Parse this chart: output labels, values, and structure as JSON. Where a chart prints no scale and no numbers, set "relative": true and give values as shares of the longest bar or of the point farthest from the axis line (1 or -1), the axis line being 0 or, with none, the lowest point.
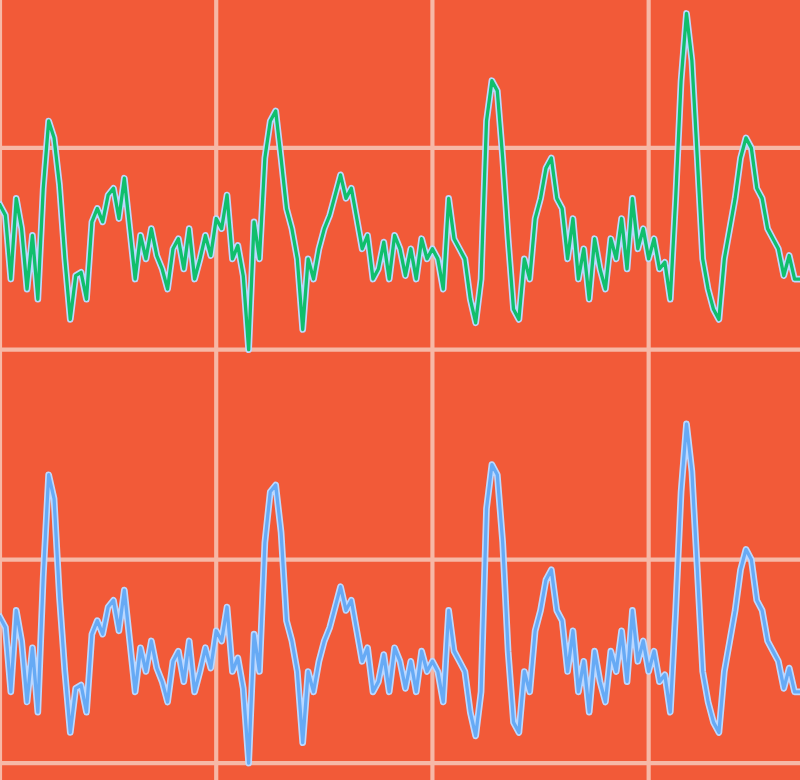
{
  "chart_data": [
    {
      "type": "line",
      "relative": true,
      "grid": true,
      "tick_labels": false,
      "categories": [
        null,
        null,
        null,
        null,
        null,
        null,
        null,
        null,
        null,
        null,
        null,
        null,
        null,
        null,
        null,
        null,
        null,
        null,
        null,
        null,
        null,
        null,
        null,
        null,
        null,
        null,
        null,
        null,
        null,
        null,
        null,
        null,
        null,
        null,
        null,
        null,
        null,
        null,
        null,
        null,
        null,
        null,
        null,
        null,
        null,
        null,
        null,
        null,
        null,
        null,
        null,
        null,
        null,
        null,
        null,
        null,
        null,
        null,
        null,
        null,
        null,
        null,
        null,
        null,
        null,
        null,
        null,
        null,
        null,
        null,
        null,
        null,
        null,
        null,
        null,
        null,
        null,
        null,
        null,
        null,
        null,
        null,
        null,
        null,
        null,
        null,
        null,
        null,
        null,
        null,
        null,
        null,
        null,
        null,
        null,
        null,
        null,
        null,
        null,
        null,
        null,
        null,
        null,
        null,
        null,
        null,
        null,
        null,
        null,
        null,
        null,
        null,
        null,
        null,
        null,
        null,
        null,
        null,
        null,
        null,
        null,
        null,
        null,
        null,
        null,
        null,
        null,
        null,
        null,
        null,
        null,
        null,
        null,
        null,
        null,
        null,
        null,
        null,
        null,
        null,
        null,
        null,
        null,
        null,
        null,
        null,
        null,
        null,
        null
      ],
      "series": [
        {
          "color": "#10bf6c",
          "values": [
            0.43,
            0.4,
            0.21,
            0.45,
            0.36,
            0.18,
            0.34,
            0.15,
            0.48,
            0.68,
            0.63,
            0.49,
            0.27,
            0.09,
            0.22,
            0.23,
            0.15,
            0.38,
            0.42,
            0.38,
            0.46,
            0.48,
            0.39,
            0.51,
            0.36,
            0.21,
            0.34,
            0.27,
            0.36,
            0.28,
            0.24,
            0.18,
            0.3,
            0.33,
            0.24,
            0.36,
            0.21,
            0.27,
            0.34,
            0.28,
            0.39,
            0.36,
            0.46,
            0.27,
            0.31,
            0.22,
            0,
            0.38,
            0.27,
            0.57,
            0.68,
            0.71,
            0.57,
            0.42,
            0.36,
            0.27,
            0.06,
            0.27,
            0.21,
            0.3,
            0.36,
            0.4,
            0.46,
            0.52,
            0.45,
            0.48,
            0.39,
            0.3,
            0.34,
            0.21,
            0.24,
            0.32,
            0.21,
            0.34,
            0.3,
            0.22,
            0.3,
            0.21,
            0.33,
            0.27,
            0.3,
            0.27,
            0.18,
            0.45,
            0.33,
            0.3,
            0.27,
            0.15,
            0.08,
            0.21,
            0.68,
            0.8,
            0.77,
            0.57,
            0.33,
            0.12,
            0.09,
            0.27,
            0.21,
            0.39,
            0.45,
            0.54,
            0.57,
            0.45,
            0.42,
            0.27,
            0.39,
            0.21,
            0.3,
            0.15,
            0.33,
            0.24,
            0.18,
            0.33,
            0.27,
            0.39,
            0.24,
            0.45,
            0.3,
            0.36,
            0.27,
            0.33,
            0.24,
            0.26,
            0.15,
            0.45,
            0.8,
            1,
            0.86,
            0.57,
            0.27,
            0.18,
            0.12,
            0.09,
            0.27,
            0.36,
            0.45,
            0.57,
            0.63,
            0.6,
            0.48,
            0.45,
            0.36,
            0.33,
            0.3,
            0.22,
            0.28,
            0.21,
            0.21
          ]
        }
      ]
    },
    {
      "type": "line",
      "relative": true,
      "grid": true,
      "tick_labels": false,
      "categories": [
        null,
        null,
        null,
        null,
        null,
        null,
        null,
        null,
        null,
        null,
        null,
        null,
        null,
        null,
        null,
        null,
        null,
        null,
        null,
        null,
        null,
        null,
        null,
        null,
        null,
        null,
        null,
        null,
        null,
        null,
        null,
        null,
        null,
        null,
        null,
        null,
        null,
        null,
        null,
        null,
        null,
        null,
        null,
        null,
        null,
        null,
        null,
        null,
        null,
        null,
        null,
        null,
        null,
        null,
        null,
        null,
        null,
        null,
        null,
        null,
        null,
        null,
        null,
        null,
        null,
        null,
        null,
        null,
        null,
        null,
        null,
        null,
        null,
        null,
        null,
        null,
        null,
        null,
        null,
        null,
        null,
        null,
        null,
        null,
        null,
        null,
        null,
        null,
        null,
        null,
        null,
        null,
        null,
        null,
        null,
        null,
        null,
        null,
        null,
        null,
        null,
        null,
        null,
        null,
        null,
        null,
        null,
        null,
        null,
        null,
        null,
        null,
        null,
        null,
        null,
        null,
        null,
        null,
        null,
        null,
        null,
        null,
        null,
        null,
        null,
        null,
        null,
        null,
        null,
        null,
        null,
        null,
        null,
        null,
        null,
        null,
        null,
        null,
        null,
        null,
        null,
        null,
        null,
        null,
        null,
        null,
        null,
        null,
        null
      ],
      "series": [
        {
          "color": "#66aaf5",
          "values": [
            0.43,
            0.4,
            0.21,
            0.45,
            0.36,
            0.18,
            0.34,
            0.15,
            0.55,
            0.85,
            0.78,
            0.49,
            0.27,
            0.09,
            0.22,
            0.23,
            0.15,
            0.38,
            0.42,
            0.38,
            0.46,
            0.48,
            0.39,
            0.51,
            0.36,
            0.21,
            0.34,
            0.27,
            0.36,
            0.28,
            0.24,
            0.18,
            0.3,
            0.33,
            0.24,
            0.36,
            0.21,
            0.27,
            0.34,
            0.28,
            0.39,
            0.36,
            0.46,
            0.27,
            0.31,
            0.22,
            0,
            0.38,
            0.27,
            0.65,
            0.8,
            0.82,
            0.68,
            0.42,
            0.36,
            0.27,
            0.06,
            0.27,
            0.21,
            0.3,
            0.36,
            0.4,
            0.46,
            0.52,
            0.45,
            0.48,
            0.39,
            0.3,
            0.34,
            0.21,
            0.24,
            0.32,
            0.21,
            0.34,
            0.3,
            0.22,
            0.3,
            0.21,
            0.33,
            0.27,
            0.3,
            0.27,
            0.18,
            0.45,
            0.33,
            0.3,
            0.27,
            0.15,
            0.08,
            0.21,
            0.75,
            0.88,
            0.85,
            0.65,
            0.33,
            0.12,
            0.09,
            0.27,
            0.21,
            0.39,
            0.45,
            0.54,
            0.57,
            0.45,
            0.42,
            0.27,
            0.39,
            0.21,
            0.3,
            0.15,
            0.33,
            0.24,
            0.18,
            0.33,
            0.27,
            0.39,
            0.24,
            0.45,
            0.3,
            0.36,
            0.27,
            0.33,
            0.24,
            0.26,
            0.15,
            0.45,
            0.8,
            1,
            0.86,
            0.57,
            0.27,
            0.18,
            0.12,
            0.09,
            0.27,
            0.36,
            0.45,
            0.57,
            0.63,
            0.6,
            0.48,
            0.45,
            0.36,
            0.33,
            0.3,
            0.22,
            0.28,
            0.21,
            0.21
          ]
        }
      ]
    }
  ]
}
